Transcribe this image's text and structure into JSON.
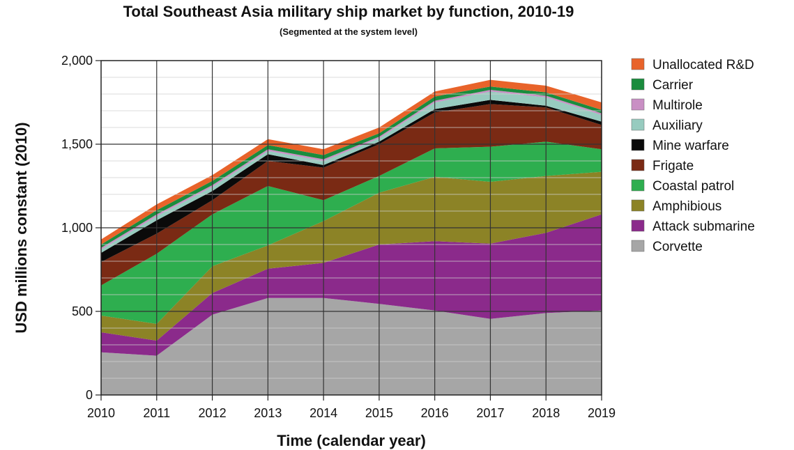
{
  "chart_data": {
    "type": "area",
    "stacked": true,
    "title": "Total Southeast Asia military ship market by function, 2010-19",
    "subtitle": "(Segmented at the system level)",
    "xlabel": "Time (calendar year)",
    "ylabel": "USD millions constant (2010)",
    "x": [
      "2010",
      "2011",
      "2012",
      "2013",
      "2014",
      "2015",
      "2016",
      "2017",
      "2018",
      "2019"
    ],
    "yticks": [
      "0",
      "500",
      "1,000",
      "1,500",
      "2,000"
    ],
    "ylim": [
      0,
      2000
    ],
    "grid": true,
    "legend_position": "right",
    "series": [
      {
        "name": "Corvette",
        "color": "#a6a6a6",
        "values": [
          255,
          235,
          480,
          580,
          580,
          545,
          505,
          455,
          490,
          505
        ]
      },
      {
        "name": "Attack submarine",
        "color": "#8b2a8b",
        "values": [
          120,
          90,
          130,
          175,
          210,
          355,
          415,
          450,
          480,
          575
        ]
      },
      {
        "name": "Amphibious",
        "color": "#8c8326",
        "values": [
          100,
          100,
          160,
          140,
          250,
          310,
          385,
          370,
          340,
          255
        ]
      },
      {
        "name": "Coastal patrol",
        "color": "#2eae4f",
        "values": [
          180,
          420,
          310,
          355,
          125,
          100,
          170,
          210,
          205,
          135
        ]
      },
      {
        "name": "Frigate",
        "color": "#7a2a14",
        "values": [
          140,
          120,
          85,
          150,
          195,
          190,
          215,
          255,
          205,
          145
        ]
      },
      {
        "name": "Mine warfare",
        "color": "#0a0a0a",
        "values": [
          55,
          80,
          55,
          40,
          15,
          15,
          20,
          25,
          10,
          20
        ]
      },
      {
        "name": "Auxiliary",
        "color": "#97cbbf",
        "values": [
          20,
          25,
          25,
          20,
          25,
          20,
          40,
          50,
          50,
          40
        ]
      },
      {
        "name": "Multirole",
        "color": "#c98fc4",
        "values": [
          10,
          10,
          10,
          10,
          10,
          10,
          10,
          10,
          10,
          10
        ]
      },
      {
        "name": "Carrier",
        "color": "#1a8c3d",
        "values": [
          20,
          25,
          25,
          25,
          25,
          20,
          25,
          20,
          20,
          20
        ]
      },
      {
        "name": "Unallocated R&D",
        "color": "#e8632a",
        "values": [
          30,
          35,
          35,
          35,
          35,
          35,
          30,
          40,
          40,
          45
        ]
      }
    ]
  }
}
